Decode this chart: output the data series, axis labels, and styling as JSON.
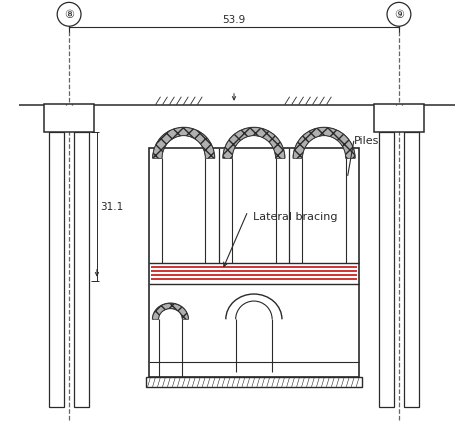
{
  "bg_color": "#ffffff",
  "line_color": "#2a2a2a",
  "red_color": "#cc2222",
  "dashed_color": "#666666",
  "label_53_9": "53.9",
  "label_31_1": "31.1",
  "label_7": "⑧",
  "label_8": "⑨",
  "label_piles": "Piles",
  "label_lateral": "Lateral bracing",
  "figsize": [
    4.74,
    4.27
  ],
  "dpi": 100
}
